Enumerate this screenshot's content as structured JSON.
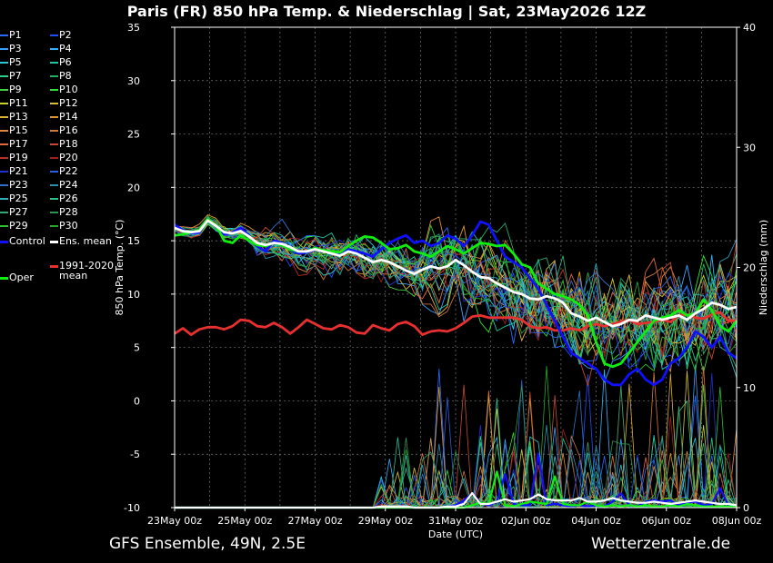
{
  "header": {
    "title": "Paris  (FR)  850 hPa Temp. & Niederschlag | Sat, 23May2026 12Z"
  },
  "footer": {
    "left": "GFS Ensemble, 49N, 2.5E",
    "right": "Wetterzentrale.de"
  },
  "legend": {
    "members": [
      {
        "label": "P1",
        "color": "#2a6cff"
      },
      {
        "label": "P2",
        "color": "#1e4fff"
      },
      {
        "label": "P3",
        "color": "#3aa0ff"
      },
      {
        "label": "P4",
        "color": "#2bb5ff"
      },
      {
        "label": "P5",
        "color": "#29c9d8"
      },
      {
        "label": "P6",
        "color": "#1ec9a0"
      },
      {
        "label": "P7",
        "color": "#2ad08a"
      },
      {
        "label": "P8",
        "color": "#22b060"
      },
      {
        "label": "P9",
        "color": "#40d040"
      },
      {
        "label": "P10",
        "color": "#30e030"
      },
      {
        "label": "P11",
        "color": "#c8d030"
      },
      {
        "label": "P12",
        "color": "#d8c030"
      },
      {
        "label": "P13",
        "color": "#e0b030"
      },
      {
        "label": "P14",
        "color": "#e09a30"
      },
      {
        "label": "P15",
        "color": "#e08840"
      },
      {
        "label": "P16",
        "color": "#d07838"
      },
      {
        "label": "P17",
        "color": "#e06a40"
      },
      {
        "label": "P18",
        "color": "#c84830"
      },
      {
        "label": "P19",
        "color": "#b83028"
      },
      {
        "label": "P20",
        "color": "#a02020"
      },
      {
        "label": "P21",
        "color": "#2030d0"
      },
      {
        "label": "P22",
        "color": "#2a60e0"
      },
      {
        "label": "P23",
        "color": "#3070c8"
      },
      {
        "label": "P24",
        "color": "#2a90b0"
      },
      {
        "label": "P25",
        "color": "#30b0b8"
      },
      {
        "label": "P26",
        "color": "#28c090"
      },
      {
        "label": "P27",
        "color": "#30a870"
      },
      {
        "label": "P28",
        "color": "#289850"
      },
      {
        "label": "P29",
        "color": "#30c030"
      },
      {
        "label": "P30",
        "color": "#28a828"
      }
    ],
    "control": {
      "label": "Control",
      "color": "#1010ff"
    },
    "ens_mean": {
      "label": "Ens. mean",
      "color": "#ffffff"
    },
    "clim": {
      "label1": "1991-2020",
      "label2": "mean",
      "color": "#e83030"
    },
    "oper": {
      "label": "Oper",
      "color": "#10ee10"
    }
  },
  "chart_data": {
    "type": "line",
    "title": "Paris  (FR)  850 hPa Temp. & Niederschlag | Sat, 23May2026 12Z",
    "xlabel": "Date (UTC)",
    "ylabel": "850 hPa Temp. (°C)",
    "y2label": "Niederschlag (mm)",
    "x_ticks": [
      "23May 00z",
      "25May 00z",
      "27May 00z",
      "29May 00z",
      "31May 00z",
      "02Jun 00z",
      "04Jun 00z",
      "06Jun 00z",
      "08Jun 00z"
    ],
    "xlim_days": [
      0,
      16
    ],
    "ylim": [
      -10,
      35
    ],
    "y_ticks": [
      -10,
      -5,
      0,
      5,
      10,
      15,
      20,
      25,
      30,
      35
    ],
    "y2lim": [
      0,
      40
    ],
    "y2_ticks": [
      0,
      10,
      20,
      30,
      40
    ],
    "grid": true,
    "series": [
      {
        "name": "Control",
        "color": "#1010ff",
        "values": [
          16.5,
          16.0,
          15.7,
          15.8,
          17.0,
          16.4,
          15.6,
          15.8,
          16.2,
          15.5,
          14.5,
          14.0,
          15.0,
          14.8,
          14.2,
          13.8,
          13.9,
          14.2,
          14.0,
          13.9,
          13.8,
          14.2,
          14.0,
          13.8,
          13.5,
          14.2,
          14.8,
          15.2,
          15.5,
          14.8,
          15.0,
          14.5,
          14.8,
          15.5,
          15.2,
          14.5,
          15.5,
          16.8,
          16.5,
          15.0,
          13.5,
          13.0,
          12.5,
          11.5,
          10.5,
          9.0,
          7.5,
          6.0,
          4.5,
          4.0,
          3.5,
          3.0,
          2.0,
          1.5,
          1.5,
          2.5,
          3.0,
          2.0,
          1.5,
          2.0,
          3.5,
          4.0,
          5.0,
          6.5,
          6.0,
          5.0,
          6.0,
          4.5,
          4.0
        ]
      },
      {
        "name": "Oper",
        "color": "#10ee10",
        "values": [
          15.5,
          15.6,
          15.8,
          16.0,
          17.0,
          16.5,
          15.0,
          14.8,
          15.5,
          15.0,
          14.6,
          14.5,
          14.8,
          14.6,
          14.2,
          14.0,
          14.0,
          14.3,
          14.1,
          14.0,
          13.9,
          14.5,
          15.0,
          15.4,
          15.3,
          14.8,
          14.2,
          14.3,
          14.6,
          14.0,
          13.8,
          13.5,
          14.0,
          14.5,
          14.2,
          13.8,
          14.3,
          14.8,
          14.7,
          14.5,
          14.6,
          13.8,
          12.8,
          12.5,
          11.0,
          10.5,
          10.0,
          9.8,
          9.5,
          9.0,
          8.0,
          5.5,
          3.5,
          3.2,
          3.5,
          4.5,
          5.5,
          6.5,
          7.5,
          7.8,
          8.0,
          8.5,
          8.0,
          8.2,
          9.5,
          8.5,
          7.0,
          6.5,
          7.5
        ]
      },
      {
        "name": "Ens. mean",
        "color": "#ffffff",
        "values": [
          16.2,
          15.9,
          15.8,
          15.9,
          16.9,
          16.4,
          15.8,
          15.7,
          15.9,
          15.4,
          14.8,
          14.6,
          14.8,
          14.7,
          14.4,
          14.0,
          14.0,
          14.2,
          14.0,
          13.8,
          13.6,
          14.0,
          13.8,
          13.4,
          13.0,
          13.2,
          13.0,
          12.6,
          12.2,
          11.9,
          12.3,
          12.6,
          12.4,
          12.6,
          13.2,
          12.7,
          12.1,
          11.6,
          11.5,
          11.0,
          10.6,
          10.2,
          10.0,
          9.6,
          9.5,
          9.8,
          9.6,
          9.2,
          8.2,
          7.9,
          7.5,
          7.8,
          7.4,
          7.0,
          7.2,
          7.6,
          7.5,
          8.0,
          7.8,
          7.6,
          7.8,
          8.0,
          7.6,
          8.2,
          8.6,
          9.2,
          9.0,
          8.6,
          8.8
        ]
      },
      {
        "name": "1991-2020 mean",
        "color": "#e83030",
        "values": [
          6.3,
          6.8,
          6.2,
          6.7,
          6.9,
          6.9,
          6.7,
          7.0,
          7.6,
          7.5,
          7.0,
          6.9,
          7.3,
          6.9,
          6.3,
          6.9,
          7.6,
          7.2,
          6.8,
          6.7,
          7.1,
          6.9,
          6.4,
          6.3,
          7.1,
          6.8,
          6.6,
          7.2,
          7.4,
          7.0,
          6.2,
          6.5,
          6.6,
          6.5,
          6.8,
          7.3,
          7.9,
          8.0,
          7.8,
          7.8,
          7.8,
          7.8,
          7.6,
          7.0,
          6.8,
          6.9,
          6.6,
          6.6,
          6.8,
          6.6,
          7.0,
          7.2,
          7.0,
          7.2,
          7.4,
          7.6,
          7.2,
          7.3,
          7.4,
          7.6,
          7.4,
          8.0,
          8.1,
          7.8,
          7.7,
          8.1,
          8.3,
          7.5,
          7.5
        ]
      },
      {
        "name": "Precip Control",
        "color": "#1010ff",
        "axis": "y2",
        "values": [
          0,
          0,
          0,
          0,
          0,
          0,
          0,
          0,
          0,
          0,
          0,
          0,
          0,
          0,
          0,
          0,
          0,
          0,
          0,
          0,
          0,
          0,
          0,
          0,
          0,
          0,
          0,
          0,
          0,
          0,
          0,
          0,
          0,
          0.1,
          0.2,
          0.6,
          1.2,
          0.4,
          0.2,
          0.5,
          2.8,
          0.3,
          0.2,
          0.2,
          4.5,
          0.2,
          0.3,
          0.2,
          0.1,
          0.2,
          0.1,
          0.2,
          0.1,
          0.5,
          1.2,
          0.2,
          0.1,
          0.5,
          0.6,
          0.5,
          0.6,
          0.2,
          0.4,
          0.5,
          0.2,
          0.3,
          1.6,
          0.2,
          0.1
        ]
      },
      {
        "name": "Precip Oper",
        "color": "#10ee10",
        "axis": "y2",
        "values": [
          0,
          0,
          0,
          0,
          0,
          0,
          0,
          0,
          0,
          0,
          0,
          0,
          0,
          0,
          0,
          0,
          0,
          0,
          0,
          0,
          0,
          0,
          0,
          0,
          0,
          0,
          0,
          0,
          0,
          0,
          0,
          0,
          0,
          0,
          0,
          0,
          0.2,
          0.4,
          0.3,
          3.0,
          0.2,
          0.1,
          0.3,
          0.5,
          0.4,
          0.3,
          2.6,
          0.3,
          0.2,
          0.2,
          0.5,
          0.2,
          0.1,
          0.2,
          0.1,
          0.2,
          0.1,
          0.2,
          0.1,
          0.1,
          0.2,
          0.1,
          0.3,
          0.2,
          0.1,
          0.1,
          0.1,
          0.1,
          0.1
        ]
      },
      {
        "name": "Precip Ens. mean",
        "color": "#ffffff",
        "axis": "y2",
        "values": [
          0,
          0,
          0,
          0,
          0,
          0,
          0,
          0,
          0,
          0,
          0,
          0,
          0,
          0,
          0,
          0,
          0,
          0,
          0,
          0,
          0,
          0,
          0,
          0,
          0,
          0.1,
          0.1,
          0.1,
          0.1,
          0,
          0,
          0,
          0,
          0.1,
          0.1,
          0.3,
          1.2,
          0.3,
          0.3,
          0.5,
          0.7,
          0.5,
          0.6,
          0.7,
          1.1,
          0.7,
          0.6,
          0.6,
          0.6,
          0.8,
          0.5,
          0.5,
          0.6,
          0.8,
          0.6,
          0.5,
          0.4,
          0.4,
          0.5,
          0.4,
          0.3,
          0.4,
          0.5,
          0.6,
          0.5,
          0.4,
          0.3,
          0.3,
          0.2
        ]
      }
    ]
  }
}
